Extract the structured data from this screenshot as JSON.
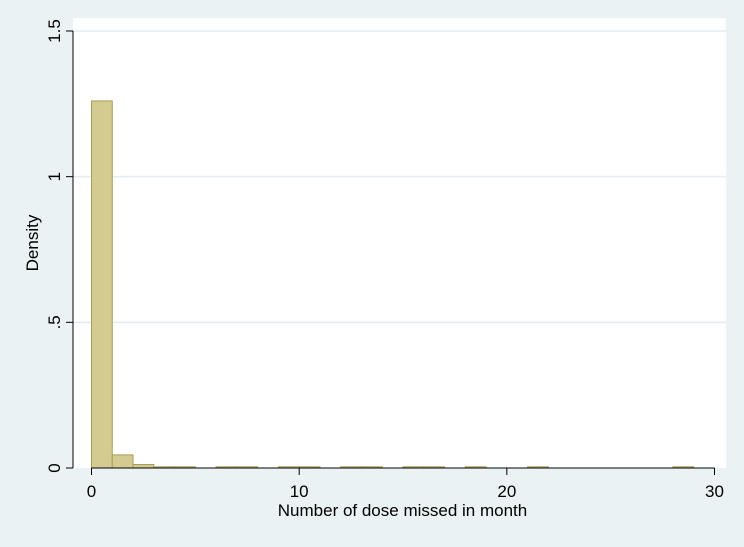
{
  "chart_data": {
    "type": "bar",
    "xlabel": "Number of dose missed in month",
    "ylabel": "Density",
    "xlim": [
      -0.5,
      30.5
    ],
    "ylim": [
      0,
      1.5
    ],
    "xticks": [
      0,
      10,
      20,
      30
    ],
    "xtick_labels": [
      "0",
      "10",
      "20",
      "30"
    ],
    "yticks": [
      0,
      0.5,
      1,
      1.5
    ],
    "ytick_labels": [
      "0",
      ".5",
      "1",
      "1.5"
    ],
    "grid": true,
    "bin_width": 1,
    "bins": [
      {
        "x0": 0,
        "x1": 1,
        "density": 1.26
      },
      {
        "x0": 1,
        "x1": 2,
        "density": 0.045
      },
      {
        "x0": 2,
        "x1": 3,
        "density": 0.012
      },
      {
        "x0": 3,
        "x1": 4,
        "density": 0.004
      },
      {
        "x0": 4,
        "x1": 5,
        "density": 0.004
      },
      {
        "x0": 6,
        "x1": 7,
        "density": 0.003
      },
      {
        "x0": 7,
        "x1": 8,
        "density": 0.003
      },
      {
        "x0": 9,
        "x1": 10,
        "density": 0.003
      },
      {
        "x0": 10,
        "x1": 11,
        "density": 0.003
      },
      {
        "x0": 12,
        "x1": 13,
        "density": 0.003
      },
      {
        "x0": 13,
        "x1": 14,
        "density": 0.003
      },
      {
        "x0": 15,
        "x1": 16,
        "density": 0.003
      },
      {
        "x0": 16,
        "x1": 17,
        "density": 0.003
      },
      {
        "x0": 18,
        "x1": 19,
        "density": 0.003
      },
      {
        "x0": 21,
        "x1": 22,
        "density": 0.003
      },
      {
        "x0": 28,
        "x1": 29,
        "density": 0.003
      }
    ],
    "colors": {
      "bar_fill": "#d4cb91",
      "bar_stroke": "#a89d56",
      "plot_background": "#ffffff",
      "page_background": "#eaf2f3",
      "grid": "#e3ecf0",
      "axis": "#000000"
    }
  }
}
